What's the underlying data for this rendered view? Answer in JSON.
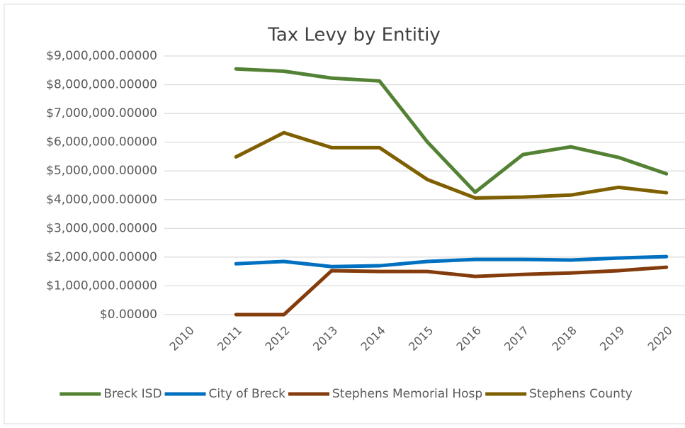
{
  "chart_data": {
    "type": "line",
    "title": "Tax Levy by Entitiy",
    "categories": [
      "2010",
      "2011",
      "2012",
      "2013",
      "2014",
      "2015",
      "2016",
      "2017",
      "2018",
      "2019",
      "2020"
    ],
    "series": [
      {
        "name": "Breck ISD",
        "color": "#548235",
        "values": [
          null,
          8550000,
          8470000,
          8230000,
          8130000,
          6010000,
          4260000,
          5570000,
          5840000,
          5470000,
          4900000
        ]
      },
      {
        "name": "City of Breck",
        "color": "#0070c0",
        "values": [
          null,
          1770000,
          1850000,
          1670000,
          1700000,
          1850000,
          1920000,
          1920000,
          1900000,
          1970000,
          2020000
        ]
      },
      {
        "name": "Stephens Memorial Hosp",
        "color": "#843c0c",
        "values": [
          null,
          0,
          0,
          1530000,
          1500000,
          1500000,
          1330000,
          1400000,
          1450000,
          1530000,
          1650000
        ]
      },
      {
        "name": "Stephens County",
        "color": "#7f6000",
        "values": [
          null,
          5490000,
          6330000,
          5810000,
          5810000,
          4700000,
          4060000,
          4090000,
          4160000,
          4430000,
          4240000
        ]
      }
    ],
    "ylim": [
      0,
      9000000
    ],
    "yticks": [
      {
        "value": 0,
        "label": "$0.00000"
      },
      {
        "value": 1000000,
        "label": "$1,000,000.00000"
      },
      {
        "value": 2000000,
        "label": "$2,000,000.00000"
      },
      {
        "value": 3000000,
        "label": "$3,000,000.00000"
      },
      {
        "value": 4000000,
        "label": "$4,000,000.00000"
      },
      {
        "value": 5000000,
        "label": "$5,000,000.00000"
      },
      {
        "value": 6000000,
        "label": "$6,000,000.00000"
      },
      {
        "value": 7000000,
        "label": "$7,000,000.00000"
      },
      {
        "value": 8000000,
        "label": "$8,000,000.00000"
      },
      {
        "value": 9000000,
        "label": "$9,000,000.00000"
      }
    ],
    "grid": true,
    "legend": "bottom"
  }
}
